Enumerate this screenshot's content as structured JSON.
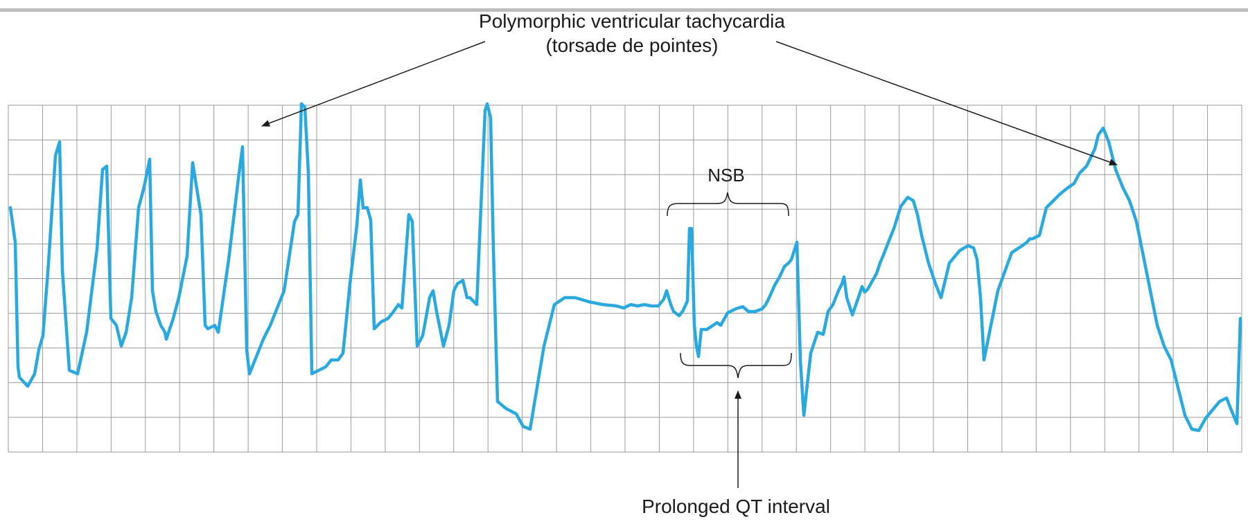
{
  "figure": {
    "annotations": {
      "title_line1": "Polymorphic ventricular tachycardia",
      "title_line2": "(torsade de pointes)",
      "nsb": "NSB",
      "qt": "Prolonged QT interval"
    },
    "colors": {
      "trace": "#2aa8e0",
      "grid": "#9a9a9a",
      "text": "#1a1a1a",
      "top_rule": "#bdbdbd"
    }
  }
}
